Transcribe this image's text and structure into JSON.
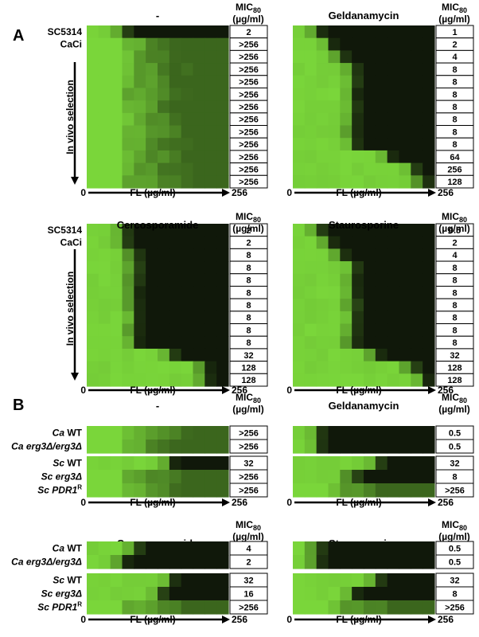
{
  "panel_labels": {
    "A": "A",
    "B": "B"
  },
  "common": {
    "mic_label": "MIC",
    "mic_sub": "80",
    "mic_units": "(µg/ml)",
    "x_axis_label": "FL (µg/ml)",
    "x_min_label": "0",
    "x_max_label": "256",
    "in_vivo_label": "In vivo selection"
  },
  "colors": {
    "growth": "#7ad63a",
    "no_growth": "#000000"
  },
  "chart_data": [
    {
      "type": "heatmap",
      "panel": "A",
      "title": "-",
      "n_cols": 12,
      "x": {
        "min": 0,
        "max": 256
      },
      "rows": [
        {
          "label": "SC5314",
          "boundary": 3,
          "mic": "2"
        },
        {
          "label": "CaCi",
          "boundary": 12,
          "mic": ">256"
        },
        {
          "label": "",
          "boundary": 12,
          "mic": ">256"
        },
        {
          "label": "",
          "boundary": 12,
          "mic": ">256"
        },
        {
          "label": "",
          "boundary": 12,
          "mic": ">256"
        },
        {
          "label": "",
          "boundary": 12,
          "mic": ">256"
        },
        {
          "label": "",
          "boundary": 12,
          "mic": ">256"
        },
        {
          "label": "",
          "boundary": 12,
          "mic": ">256"
        },
        {
          "label": "",
          "boundary": 12,
          "mic": ">256"
        },
        {
          "label": "",
          "boundary": 12,
          "mic": ">256"
        },
        {
          "label": "",
          "boundary": 12,
          "mic": ">256"
        },
        {
          "label": "",
          "boundary": 12,
          "mic": ">256"
        },
        {
          "label": "",
          "boundary": 12,
          "mic": ">256"
        }
      ]
    },
    {
      "type": "heatmap",
      "panel": "A",
      "title": "Geldanamycin",
      "n_cols": 12,
      "x": {
        "min": 0,
        "max": 256
      },
      "rows": [
        {
          "label": "",
          "boundary": 2,
          "mic": "1"
        },
        {
          "label": "",
          "boundary": 3,
          "mic": "2"
        },
        {
          "label": "",
          "boundary": 4,
          "mic": "4"
        },
        {
          "label": "",
          "boundary": 5,
          "mic": "8"
        },
        {
          "label": "",
          "boundary": 5,
          "mic": "8"
        },
        {
          "label": "",
          "boundary": 5,
          "mic": "8"
        },
        {
          "label": "",
          "boundary": 5,
          "mic": "8"
        },
        {
          "label": "",
          "boundary": 5,
          "mic": "8"
        },
        {
          "label": "",
          "boundary": 5,
          "mic": "8"
        },
        {
          "label": "",
          "boundary": 5,
          "mic": "8"
        },
        {
          "label": "",
          "boundary": 8,
          "mic": "64"
        },
        {
          "label": "",
          "boundary": 10,
          "mic": "256"
        },
        {
          "label": "",
          "boundary": 11,
          "mic": "128"
        }
      ]
    },
    {
      "type": "heatmap",
      "panel": "A",
      "title": "Cercosporamide",
      "n_cols": 12,
      "x": {
        "min": 0,
        "max": 256
      },
      "rows": [
        {
          "label": "SC5314",
          "boundary": 3,
          "mic": "2"
        },
        {
          "label": "CaCi",
          "boundary": 3,
          "mic": "2"
        },
        {
          "label": "",
          "boundary": 4,
          "mic": "8"
        },
        {
          "label": "",
          "boundary": 4,
          "mic": "8"
        },
        {
          "label": "",
          "boundary": 4,
          "mic": "8"
        },
        {
          "label": "",
          "boundary": 4,
          "mic": "8"
        },
        {
          "label": "",
          "boundary": 4,
          "mic": "8"
        },
        {
          "label": "",
          "boundary": 4,
          "mic": "8"
        },
        {
          "label": "",
          "boundary": 4,
          "mic": "8"
        },
        {
          "label": "",
          "boundary": 4,
          "mic": "8"
        },
        {
          "label": "",
          "boundary": 7,
          "mic": "32"
        },
        {
          "label": "",
          "boundary": 10,
          "mic": "128"
        },
        {
          "label": "",
          "boundary": 10,
          "mic": "128"
        }
      ]
    },
    {
      "type": "heatmap",
      "panel": "A",
      "title": "Staurosporine",
      "n_cols": 12,
      "x": {
        "min": 0,
        "max": 256
      },
      "rows": [
        {
          "label": "",
          "boundary": 2,
          "mic": "0.5"
        },
        {
          "label": "",
          "boundary": 3,
          "mic": "2"
        },
        {
          "label": "",
          "boundary": 4,
          "mic": "4"
        },
        {
          "label": "",
          "boundary": 5,
          "mic": "8"
        },
        {
          "label": "",
          "boundary": 5,
          "mic": "8"
        },
        {
          "label": "",
          "boundary": 5,
          "mic": "8"
        },
        {
          "label": "",
          "boundary": 5,
          "mic": "8"
        },
        {
          "label": "",
          "boundary": 5,
          "mic": "8"
        },
        {
          "label": "",
          "boundary": 5,
          "mic": "8"
        },
        {
          "label": "",
          "boundary": 5,
          "mic": "8"
        },
        {
          "label": "",
          "boundary": 7,
          "mic": "32"
        },
        {
          "label": "",
          "boundary": 10,
          "mic": "128"
        },
        {
          "label": "",
          "boundary": 11,
          "mic": "128"
        }
      ]
    },
    {
      "type": "heatmap",
      "panel": "B",
      "title": "-",
      "n_cols": 12,
      "x": {
        "min": 0,
        "max": 256
      },
      "groups": [
        {
          "rows": [
            {
              "label": "Ca WT",
              "boundary": 12,
              "mic": ">256"
            },
            {
              "label": "Ca erg3Δ/erg3Δ",
              "boundary": 12,
              "mic": ">256"
            }
          ]
        },
        {
          "rows": [
            {
              "label": "Sc WT",
              "boundary": 7,
              "mic": "32"
            },
            {
              "label": "Sc erg3Δ",
              "boundary": 12,
              "mic": ">256"
            },
            {
              "label": "Sc PDR1R",
              "boundary": 12,
              "mic": ">256"
            }
          ]
        }
      ]
    },
    {
      "type": "heatmap",
      "panel": "B",
      "title": "Geldanamycin",
      "n_cols": 12,
      "x": {
        "min": 0,
        "max": 256
      },
      "groups": [
        {
          "rows": [
            {
              "label": "",
              "boundary": 2,
              "mic": "0.5"
            },
            {
              "label": "",
              "boundary": 2,
              "mic": "0.5"
            }
          ]
        },
        {
          "rows": [
            {
              "label": "",
              "boundary": 7,
              "mic": "32"
            },
            {
              "label": "",
              "boundary": 5,
              "mic": "8"
            },
            {
              "label": "",
              "boundary": 12,
              "mic": ">256"
            }
          ]
        }
      ]
    },
    {
      "type": "heatmap",
      "panel": "B",
      "title": "Cercosporamide",
      "n_cols": 12,
      "x": {
        "min": 0,
        "max": 256
      },
      "groups": [
        {
          "rows": [
            {
              "label": "Ca WT",
              "boundary": 4,
              "mic": "4"
            },
            {
              "label": "Ca erg3Δ/erg3Δ",
              "boundary": 3,
              "mic": "2"
            }
          ]
        },
        {
          "rows": [
            {
              "label": "Sc WT",
              "boundary": 7,
              "mic": "32"
            },
            {
              "label": "Sc erg3Δ",
              "boundary": 6,
              "mic": "16"
            },
            {
              "label": "Sc PDR1R",
              "boundary": 12,
              "mic": ">256"
            }
          ]
        }
      ]
    },
    {
      "type": "heatmap",
      "panel": "B",
      "title": "Staurosporine",
      "n_cols": 12,
      "x": {
        "min": 0,
        "max": 256
      },
      "groups": [
        {
          "rows": [
            {
              "label": "",
              "boundary": 2,
              "mic": "0.5"
            },
            {
              "label": "",
              "boundary": 2,
              "mic": "0.5"
            }
          ]
        },
        {
          "rows": [
            {
              "label": "",
              "boundary": 7,
              "mic": "32"
            },
            {
              "label": "",
              "boundary": 5,
              "mic": "8"
            },
            {
              "label": "",
              "boundary": 12,
              "mic": ">256"
            }
          ]
        }
      ]
    }
  ]
}
